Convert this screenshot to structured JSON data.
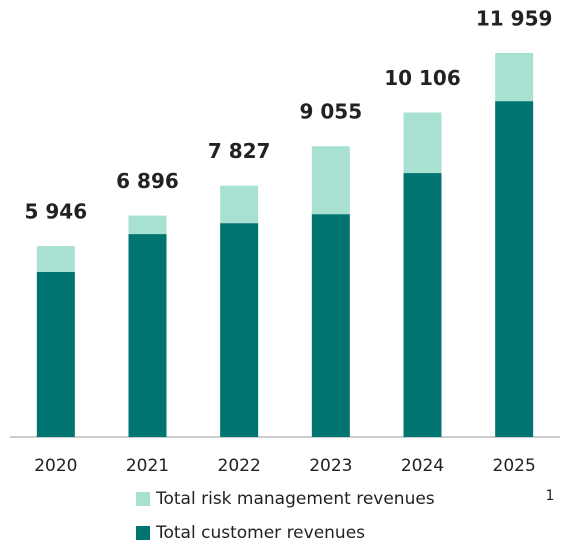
{
  "chart_data": {
    "type": "bar",
    "categories": [
      "2020",
      "2021",
      "2022",
      "2023",
      "2024",
      "2025"
    ],
    "series": [
      {
        "name": "Total customer revenues",
        "color": "#007470",
        "values": [
          5140,
          6320,
          6660,
          6940,
          8220,
          10460
        ]
      },
      {
        "name": "Total risk management revenues",
        "color": "#a8e0d2",
        "values": [
          806,
          576,
          1167,
          2115,
          1886,
          1499
        ]
      }
    ],
    "totals": {
      "values": [
        5946,
        6896,
        7827,
        9055,
        10106,
        11959
      ],
      "value_labels": [
        "5 946",
        "6 896",
        "7 827",
        "9 055",
        "10 106",
        "11 959"
      ]
    },
    "stacked": true,
    "footnote": "1"
  }
}
